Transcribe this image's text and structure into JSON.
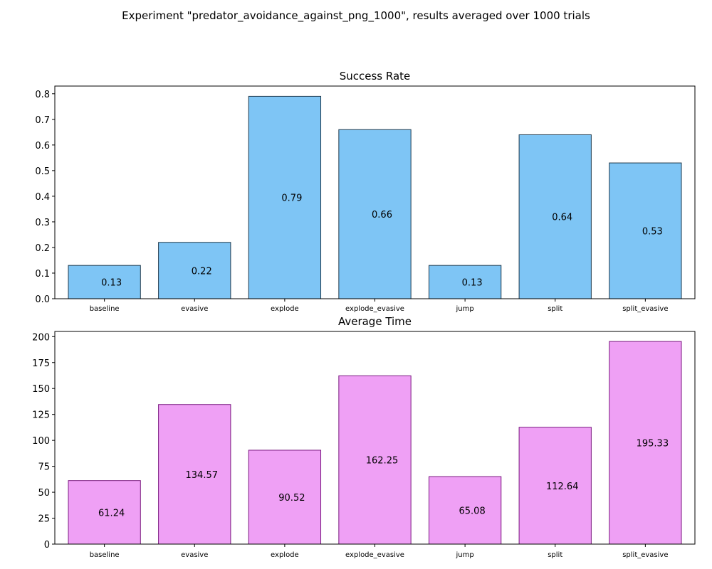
{
  "suptitle": "Experiment \"predator_avoidance_against_png_1000\", results averaged over 1000 trials",
  "chart_data": [
    {
      "type": "bar",
      "title": "Success Rate",
      "xlabel": "",
      "ylabel": "",
      "categories": [
        "baseline",
        "evasive",
        "explode",
        "explode_evasive",
        "jump",
        "split",
        "split_evasive"
      ],
      "values": [
        0.13,
        0.22,
        0.79,
        0.66,
        0.13,
        0.64,
        0.53
      ],
      "value_labels": [
        "0.13",
        "0.22",
        "0.79",
        "0.66",
        "0.13",
        "0.64",
        "0.53"
      ],
      "ylim": [
        0,
        0.83
      ],
      "yticks": [
        0.0,
        0.1,
        0.2,
        0.3,
        0.4,
        0.5,
        0.6,
        0.7,
        0.8
      ],
      "ytick_labels": [
        "0.0",
        "0.1",
        "0.2",
        "0.3",
        "0.4",
        "0.5",
        "0.6",
        "0.7",
        "0.8"
      ],
      "bar_color": "#7EC5F5",
      "edge_color": "#1F3A4D",
      "grid": false
    },
    {
      "type": "bar",
      "title": "Average Time",
      "xlabel": "",
      "ylabel": "",
      "categories": [
        "baseline",
        "evasive",
        "explode",
        "explode_evasive",
        "jump",
        "split",
        "split_evasive"
      ],
      "values": [
        61.24,
        134.57,
        90.52,
        162.25,
        65.08,
        112.64,
        195.33
      ],
      "value_labels": [
        "61.24",
        "134.57",
        "90.52",
        "162.25",
        "65.08",
        "112.64",
        "195.33"
      ],
      "ylim": [
        0,
        205
      ],
      "yticks": [
        0,
        25,
        50,
        75,
        100,
        125,
        150,
        175,
        200
      ],
      "ytick_labels": [
        "0",
        "25",
        "50",
        "75",
        "100",
        "125",
        "150",
        "175",
        "200"
      ],
      "bar_color": "#EFA0F5",
      "edge_color": "#7A1A80",
      "grid": false
    }
  ]
}
